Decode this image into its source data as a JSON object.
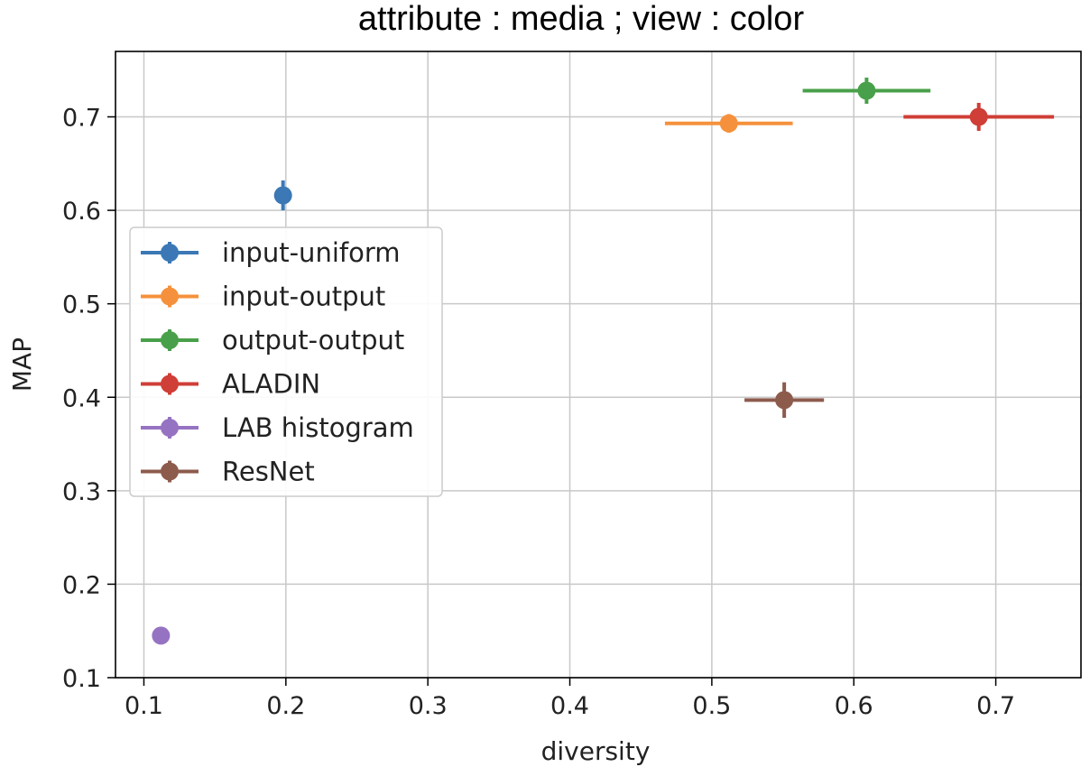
{
  "chart_data": {
    "type": "scatter",
    "title": "attribute : media ; view : color",
    "xlabel": "diversity",
    "ylabel": "MAP",
    "xlim": [
      0.08,
      0.76
    ],
    "ylim": [
      0.1,
      0.77
    ],
    "xticks": [
      0.1,
      0.2,
      0.3,
      0.4,
      0.5,
      0.6,
      0.7
    ],
    "xtick_labels": [
      "0.1",
      "0.2",
      "0.3",
      "0.4",
      "0.5",
      "0.6",
      "0.7"
    ],
    "yticks": [
      0.1,
      0.2,
      0.3,
      0.4,
      0.5,
      0.6,
      0.7
    ],
    "ytick_labels": [
      "0.1",
      "0.2",
      "0.3",
      "0.4",
      "0.5",
      "0.6",
      "0.7"
    ],
    "grid": true,
    "legend_position": "center-left",
    "series": [
      {
        "name": "input-uniform",
        "color": "#3b78b5",
        "x": 0.198,
        "y": 0.616,
        "xerr": 0.004,
        "yerr": 0.016
      },
      {
        "name": "input-output",
        "color": "#f5913c",
        "x": 0.512,
        "y": 0.693,
        "xerr": 0.045,
        "yerr": 0.01
      },
      {
        "name": "output-output",
        "color": "#49a04a",
        "x": 0.609,
        "y": 0.728,
        "xerr": 0.045,
        "yerr": 0.014
      },
      {
        "name": "ALADIN",
        "color": "#cf3e37",
        "x": 0.688,
        "y": 0.7,
        "xerr": 0.053,
        "yerr": 0.015
      },
      {
        "name": "LAB histogram",
        "color": "#9673c2",
        "x": 0.112,
        "y": 0.145,
        "xerr": 0.004,
        "yerr": 0.009
      },
      {
        "name": "ResNet",
        "color": "#8d5b4c",
        "x": 0.551,
        "y": 0.397,
        "xerr": 0.028,
        "yerr": 0.019
      }
    ]
  }
}
